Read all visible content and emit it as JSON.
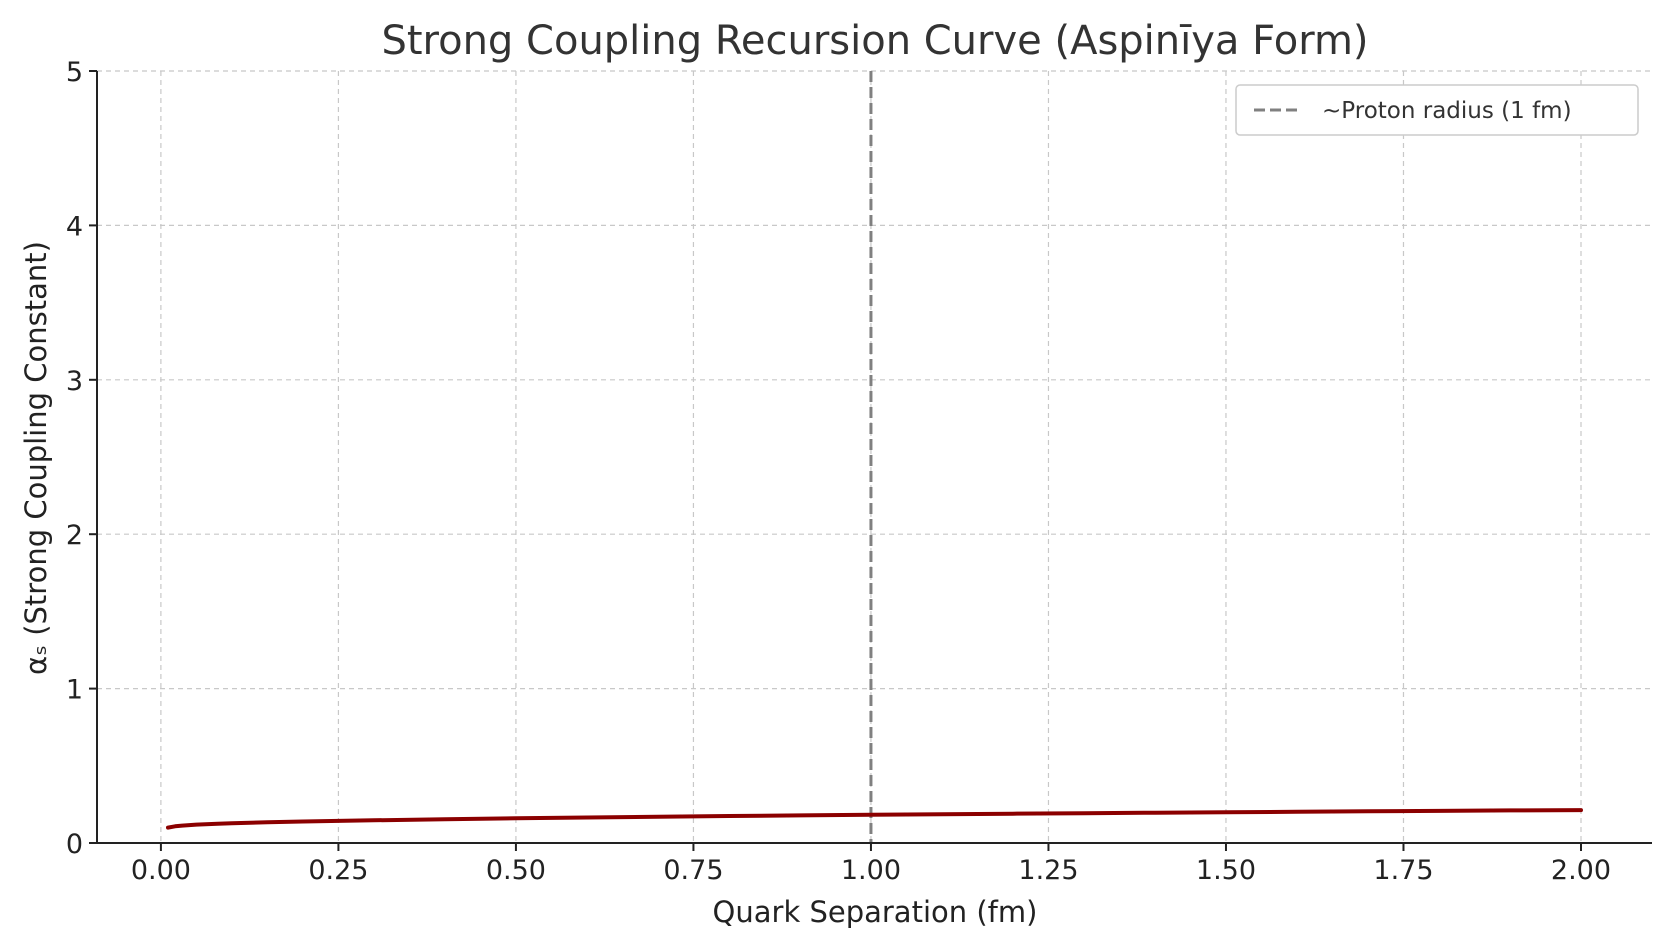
{
  "chart_data": {
    "type": "line",
    "title": "Strong Coupling Recursion Curve (Aspinīya Form)",
    "xlabel": "Quark Separation (fm)",
    "ylabel": "αₛ (Strong Coupling Constant)",
    "xlim": [
      -0.09,
      2.1
    ],
    "ylim": [
      0,
      5
    ],
    "xticks": [
      0.0,
      0.25,
      0.5,
      0.75,
      1.0,
      1.25,
      1.5,
      1.75,
      2.0
    ],
    "xtick_labels": [
      "0.00",
      "0.25",
      "0.50",
      "0.75",
      "1.00",
      "1.25",
      "1.50",
      "1.75",
      "2.00"
    ],
    "yticks": [
      0,
      1,
      2,
      3,
      4,
      5
    ],
    "ytick_labels": [
      "0",
      "1",
      "2",
      "3",
      "4",
      "5"
    ],
    "grid": true,
    "legend_position": "top-right",
    "series": [
      {
        "color": "#8b0000",
        "x": [
          0.01,
          0.02,
          0.03,
          0.05,
          0.08,
          0.1,
          0.15,
          0.2,
          0.25,
          0.3,
          0.4,
          0.5,
          0.6,
          0.7,
          0.8,
          0.9,
          1.0,
          1.1,
          1.2,
          1.3,
          1.4,
          1.5,
          1.6,
          1.7,
          1.8,
          1.9,
          2.0
        ],
        "y": [
          0.1,
          0.108,
          0.113,
          0.119,
          0.125,
          0.128,
          0.134,
          0.139,
          0.143,
          0.147,
          0.154,
          0.16,
          0.165,
          0.17,
          0.175,
          0.179,
          0.183,
          0.186,
          0.19,
          0.193,
          0.196,
          0.199,
          0.202,
          0.205,
          0.208,
          0.211,
          0.213
        ]
      }
    ],
    "vlines": [
      {
        "name": "~Proton radius (1 fm)",
        "x": 1.0,
        "color": "#808080",
        "style": "dashed"
      }
    ]
  }
}
